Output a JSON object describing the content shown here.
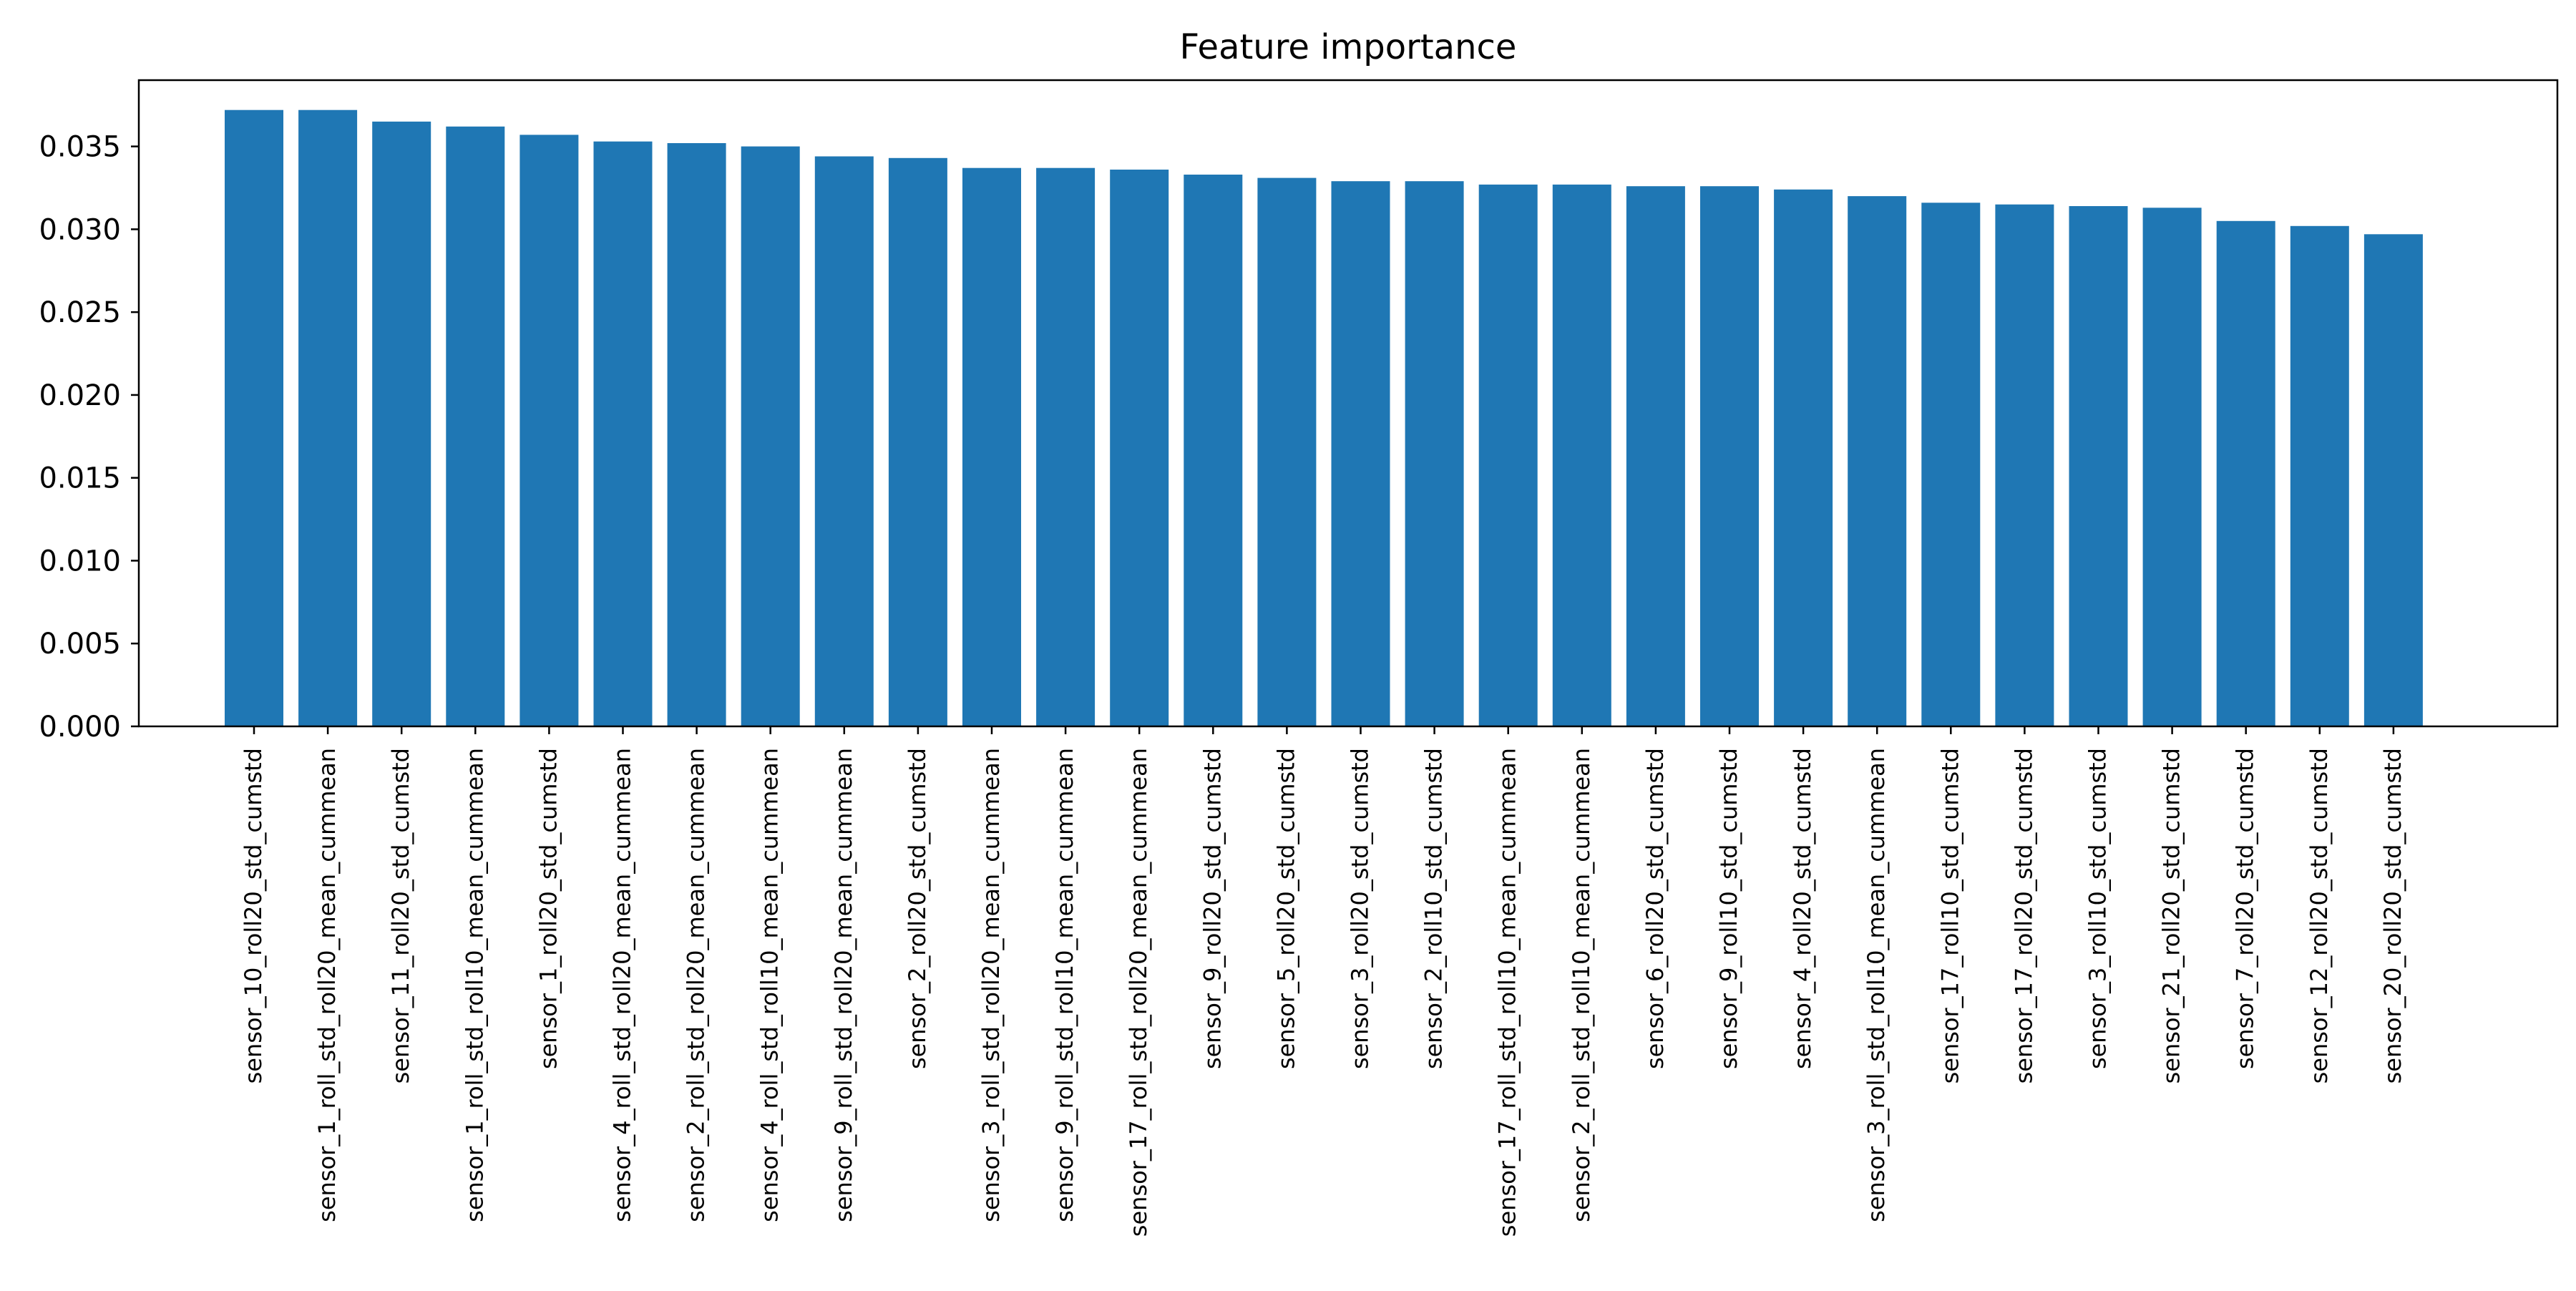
{
  "chart_data": {
    "type": "bar",
    "title": "Feature importance",
    "xlabel": "",
    "ylabel": "",
    "ylim": [
      0,
      0.039
    ],
    "yticks": [
      0.0,
      0.005,
      0.01,
      0.015,
      0.02,
      0.025,
      0.03,
      0.035
    ],
    "ytick_labels": [
      "0.000",
      "0.005",
      "0.010",
      "0.015",
      "0.020",
      "0.025",
      "0.030",
      "0.035"
    ],
    "grid": false,
    "legend": "none",
    "bar_color": "#1f77b4",
    "categories": [
      "sensor_10_roll20_std_cumstd",
      "sensor_1_roll_std_roll20_mean_cummean",
      "sensor_11_roll20_std_cumstd",
      "sensor_1_roll_std_roll10_mean_cummean",
      "sensor_1_roll20_std_cumstd",
      "sensor_4_roll_std_roll20_mean_cummean",
      "sensor_2_roll_std_roll20_mean_cummean",
      "sensor_4_roll_std_roll10_mean_cummean",
      "sensor_9_roll_std_roll20_mean_cummean",
      "sensor_2_roll20_std_cumstd",
      "sensor_3_roll_std_roll20_mean_cummean",
      "sensor_9_roll_std_roll10_mean_cummean",
      "sensor_17_roll_std_roll20_mean_cummean",
      "sensor_9_roll20_std_cumstd",
      "sensor_5_roll20_std_cumstd",
      "sensor_3_roll20_std_cumstd",
      "sensor_2_roll10_std_cumstd",
      "sensor_17_roll_std_roll10_mean_cummean",
      "sensor_2_roll_std_roll10_mean_cummean",
      "sensor_6_roll20_std_cumstd",
      "sensor_9_roll10_std_cumstd",
      "sensor_4_roll20_std_cumstd",
      "sensor_3_roll_std_roll10_mean_cummean",
      "sensor_17_roll10_std_cumstd",
      "sensor_17_roll20_std_cumstd",
      "sensor_3_roll10_std_cumstd",
      "sensor_21_roll20_std_cumstd",
      "sensor_7_roll20_std_cumstd",
      "sensor_12_roll20_std_cumstd",
      "sensor_20_roll20_std_cumstd"
    ],
    "values": [
      0.0372,
      0.0372,
      0.0365,
      0.0362,
      0.0357,
      0.0353,
      0.0352,
      0.035,
      0.0344,
      0.0343,
      0.0337,
      0.0337,
      0.0336,
      0.0333,
      0.0331,
      0.0329,
      0.0329,
      0.0327,
      0.0327,
      0.0326,
      0.0326,
      0.0324,
      0.032,
      0.0316,
      0.0315,
      0.0314,
      0.0313,
      0.0305,
      0.0302,
      0.0297
    ]
  }
}
